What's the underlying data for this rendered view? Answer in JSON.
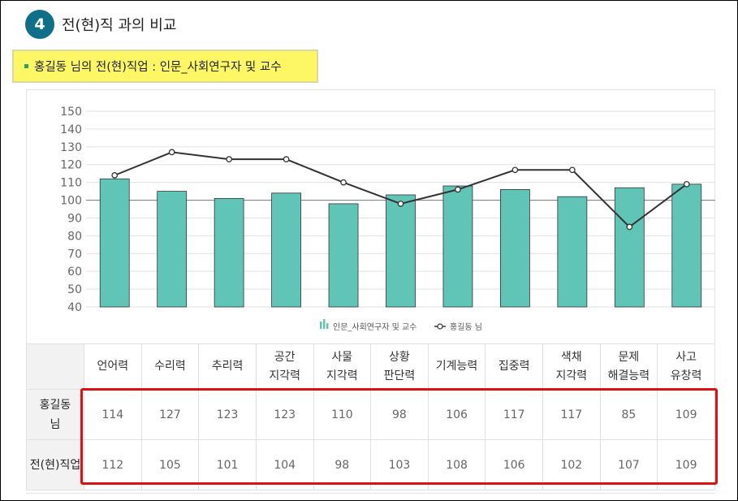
{
  "section": {
    "number": "4",
    "title": "전(현)직 과의 비교"
  },
  "job_box": {
    "text": "홍길동 님의 전(현)직업 : 인문_사회연구자 및 교수"
  },
  "colors": {
    "bar": "#60c5b7",
    "line": "#333333",
    "badge": "#0f6f89",
    "highlight": "#dd1111",
    "job_box_bg": "#fdf766"
  },
  "chart_data": {
    "type": "bar+line",
    "categories": [
      "언어력",
      "수리력",
      "추리력",
      "공간 지각력",
      "사물 지각력",
      "상황 판단력",
      "기계능력",
      "집중력",
      "색채 지각력",
      "문제 해결능력",
      "사고 유창력"
    ],
    "series": [
      {
        "name": "인문_사회연구자 및 교수",
        "type": "bar",
        "values": [
          112,
          105,
          101,
          104,
          98,
          103,
          108,
          106,
          102,
          107,
          109
        ]
      },
      {
        "name": "홍길동 님",
        "type": "line",
        "values": [
          114,
          127,
          123,
          123,
          110,
          98,
          106,
          117,
          117,
          85,
          109
        ]
      }
    ],
    "ylim": [
      40,
      150
    ],
    "yticks": [
      40,
      50,
      60,
      70,
      80,
      90,
      100,
      110,
      120,
      130,
      140,
      150
    ],
    "reference_line": 100,
    "legend": [
      "인문_사회연구자 및 교수",
      "홍길동 님"
    ],
    "legend_position": "bottom-center"
  },
  "table": {
    "headers": [
      [
        "언어력"
      ],
      [
        "수리력"
      ],
      [
        "추리력"
      ],
      [
        "공간",
        "지각력"
      ],
      [
        "사물",
        "지각력"
      ],
      [
        "상황",
        "판단력"
      ],
      [
        "기계능력"
      ],
      [
        "집중력"
      ],
      [
        "색채",
        "지각력"
      ],
      [
        "문제",
        "해결능력"
      ],
      [
        "사고",
        "유창력"
      ]
    ],
    "rows": [
      {
        "label": [
          "홍길동",
          "님"
        ],
        "values": [
          "114",
          "127",
          "123",
          "123",
          "110",
          "98",
          "106",
          "117",
          "117",
          "85",
          "109"
        ]
      },
      {
        "label": [
          "전(현)직업"
        ],
        "values": [
          "112",
          "105",
          "101",
          "104",
          "98",
          "103",
          "108",
          "106",
          "102",
          "107",
          "109"
        ]
      }
    ]
  }
}
